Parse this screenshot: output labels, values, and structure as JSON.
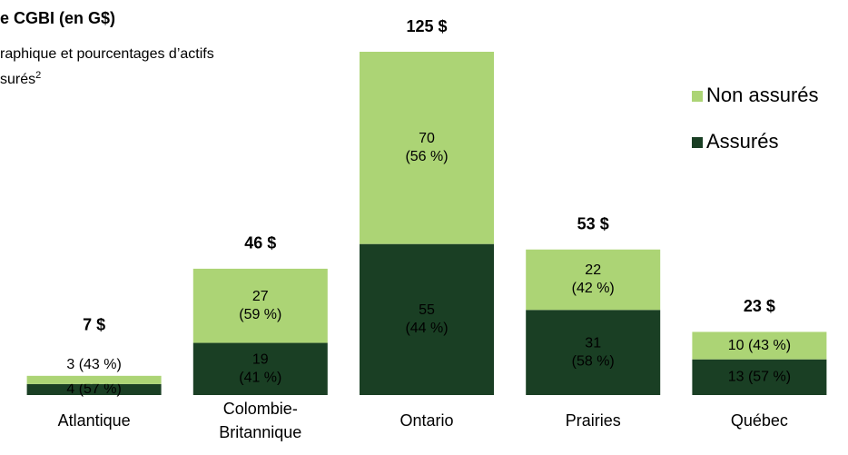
{
  "chart_data": {
    "type": "stacked_bar",
    "title": "e CGBI (en G$)",
    "subtitle": [
      "raphique et pourcentages d’actifs",
      "surés"
    ],
    "subtitle_footnote": "2",
    "categories": [
      "Atlantique",
      "Colombie-\nBritannique",
      "Ontario",
      "Prairies",
      "Québec"
    ],
    "total_labels": [
      "7 $",
      "46 $",
      "125 $",
      "53 $",
      "23 $"
    ],
    "series": [
      {
        "name": "Assurés",
        "color": "#1a3f24",
        "values": [
          4,
          19,
          55,
          31,
          13
        ],
        "value_labels": [
          "4 (57 %)",
          "19\n(41 %)",
          "55\n(44 %)",
          "31\n(58 %)",
          "13 (57 %)"
        ]
      },
      {
        "name": "Non assurés",
        "color": "#acd475",
        "values": [
          3,
          27,
          70,
          22,
          10
        ],
        "value_labels": [
          "3 (43 %)",
          "27\n(59 %)",
          "70\n(56 %)",
          "22\n(42 %)",
          "10 (43 %)"
        ]
      }
    ],
    "legend": "right"
  }
}
